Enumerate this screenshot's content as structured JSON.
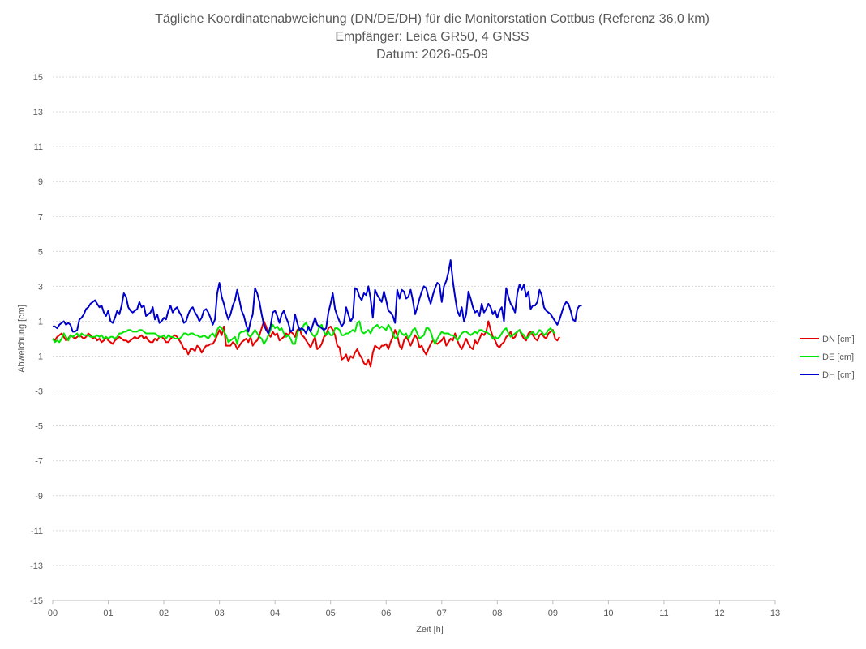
{
  "chart_data": {
    "type": "line",
    "title_lines": [
      "Tägliche Koordinatenabweichung (DN/DE/DH) für die Monitorstation Cottbus (Referenz 36,0 km)",
      "Empfänger: Leica GR50, 4 GNSS",
      "Datum: 2026-05-09"
    ],
    "xlabel": "Zeit [h]",
    "ylabel": "Abweichung [cm]",
    "xlim": [
      0,
      13
    ],
    "ylim": [
      -15,
      15
    ],
    "x_ticks": [
      "00",
      "01",
      "02",
      "03",
      "04",
      "05",
      "06",
      "07",
      "08",
      "09",
      "10",
      "11",
      "12",
      "13"
    ],
    "y_ticks": [
      "15",
      "13",
      "11",
      "9",
      "7",
      "5",
      "3",
      "1",
      "-1",
      "-3",
      "-5",
      "-7",
      "-9",
      "-11",
      "-13",
      "-15"
    ],
    "grid": "horizontal-dotted",
    "legend_position": "right",
    "x_step_h": 0.04,
    "series": [
      {
        "name": "DN [cm]",
        "color": "#e60000",
        "values": [
          0.0,
          -0.1,
          0.1,
          0.2,
          0.3,
          0.1,
          -0.1,
          0.0,
          0.2,
          0.1,
          0.0,
          0.1,
          0.2,
          0.1,
          0.0,
          0.1,
          0.3,
          0.2,
          0.0,
          0.1,
          -0.1,
          0.0,
          -0.2,
          -0.1,
          0.1,
          -0.1,
          -0.2,
          -0.3,
          -0.1,
          0.0,
          0.1,
          0.0,
          -0.1,
          -0.1,
          -0.2,
          -0.1,
          0.0,
          0.1,
          0.0,
          0.1,
          0.2,
          0.0,
          0.1,
          -0.1,
          -0.2,
          -0.2,
          0.0,
          -0.1,
          0.1,
          0.1,
          0.0,
          -0.2,
          -0.2,
          0.0,
          0.1,
          0.2,
          0.1,
          -0.1,
          -0.3,
          -0.6,
          -0.6,
          -0.9,
          -0.6,
          -0.6,
          -0.7,
          -0.4,
          -0.5,
          -0.8,
          -0.6,
          -0.4,
          -0.4,
          -0.3,
          -0.3,
          -0.1,
          0.2,
          0.5,
          0.2,
          0.7,
          -0.4,
          -0.4,
          -0.4,
          -0.2,
          -0.3,
          -0.6,
          -0.4,
          -0.2,
          -0.1,
          0.0,
          -0.2,
          0.1,
          -0.4,
          -0.2,
          -0.1,
          0.2,
          0.6,
          1.0,
          0.7,
          0.3,
          0.1,
          0.4,
          0.2,
          0.3,
          -0.1,
          0.0,
          0.1,
          0.3,
          0.2,
          0.4,
          0.3,
          0.1,
          0.5,
          0.6,
          0.2,
          0.1,
          -0.1,
          -0.3,
          -0.5,
          -0.2,
          0.1,
          -0.6,
          -0.5,
          -0.3,
          0.1,
          0.2,
          0.6,
          0.7,
          0.5,
          0.2,
          -0.4,
          -0.5,
          -1.2,
          -1.1,
          -0.9,
          -1.3,
          -1.0,
          -1.1,
          -0.8,
          -0.6,
          -0.9,
          -1.1,
          -1.4,
          -1.5,
          -1.2,
          -1.6,
          -0.8,
          -0.4,
          -0.5,
          -0.6,
          -0.4,
          -0.4,
          -0.3,
          -0.6,
          -0.2,
          0.1,
          0.5,
          0.2,
          -0.4,
          -0.6,
          -0.1,
          0.1,
          -0.1,
          -0.4,
          -0.1,
          0.2,
          0.0,
          -0.5,
          -0.4,
          -0.7,
          -0.9,
          -0.6,
          -0.3,
          -0.1,
          -0.2,
          -0.3,
          -0.2,
          -0.1,
          0.1,
          -0.4,
          -0.2,
          0.0,
          -0.1,
          0.3,
          -0.1,
          -0.4,
          -0.6,
          -0.3,
          0.0,
          -0.3,
          -0.5,
          -0.6,
          -0.1,
          -0.3,
          0.0,
          0.3,
          0.2,
          0.4,
          1.0,
          0.5,
          0.1,
          -0.1,
          -0.4,
          -0.5,
          -0.3,
          -0.2,
          0.1,
          0.2,
          0.4,
          0.0,
          0.1,
          0.4,
          0.5,
          0.2,
          0.0,
          -0.1,
          0.3,
          0.4,
          0.2,
          0.0,
          -0.1,
          0.2,
          0.3,
          0.1,
          0.0,
          0.3,
          0.4,
          0.5,
          0.0,
          -0.1,
          0.1
        ]
      },
      {
        "name": "DE [cm]",
        "color": "#00e600",
        "values": [
          0.0,
          -0.2,
          -0.1,
          -0.2,
          0.0,
          0.3,
          0.1,
          -0.1,
          0.2,
          0.1,
          0.2,
          0.3,
          0.1,
          0.3,
          0.2,
          0.2,
          0.2,
          0.1,
          0.1,
          0.1,
          0.2,
          0.1,
          0.2,
          0.0,
          0.1,
          0.0,
          0.1,
          0.1,
          0.0,
          0.1,
          0.3,
          0.3,
          0.4,
          0.4,
          0.5,
          0.5,
          0.4,
          0.4,
          0.4,
          0.5,
          0.5,
          0.4,
          0.3,
          0.3,
          0.3,
          0.3,
          0.3,
          0.2,
          0.1,
          0.1,
          0.2,
          0.0,
          0.2,
          0.1,
          0.1,
          0.0,
          0.0,
          0.0,
          0.1,
          0.3,
          0.3,
          0.2,
          0.3,
          0.3,
          0.2,
          0.2,
          0.1,
          0.1,
          0.2,
          0.1,
          0.0,
          0.2,
          0.3,
          0.1,
          0.5,
          0.7,
          0.6,
          0.4,
          0.2,
          -0.2,
          -0.1,
          0.0,
          0.1,
          -0.3,
          0.3,
          0.4,
          0.4,
          0.5,
          0.2,
          0.1,
          0.3,
          0.5,
          0.3,
          0.1,
          0.0,
          -0.3,
          -0.1,
          0.2,
          0.5,
          0.8,
          0.6,
          0.7,
          0.5,
          0.6,
          0.3,
          0.1,
          0.2,
          0.0,
          -0.3,
          -0.3,
          0.3,
          0.6,
          0.5,
          0.8,
          0.9,
          0.6,
          0.4,
          0.2,
          0.1,
          0.3,
          0.7,
          0.8,
          0.4,
          0.2,
          0.4,
          0.2,
          0.2,
          0.6,
          0.6,
          0.5,
          0.2,
          0.2,
          0.3,
          0.3,
          0.4,
          0.5,
          0.4,
          0.9,
          1.0,
          0.4,
          0.3,
          0.4,
          0.5,
          0.3,
          0.6,
          0.7,
          0.8,
          0.6,
          0.7,
          0.6,
          0.5,
          0.8,
          0.6,
          0.3,
          0.0,
          0.1,
          0.5,
          0.3,
          0.2,
          0.3,
          0.0,
          0.2,
          0.5,
          0.6,
          0.3,
          0.0,
          0.1,
          0.2,
          0.6,
          0.6,
          0.4,
          0.0,
          -0.3,
          0.0,
          0.2,
          0.4,
          0.3,
          0.3,
          0.3,
          0.2,
          0.2,
          0.1,
          -0.1,
          0.1,
          0.3,
          0.4,
          0.4,
          0.3,
          0.2,
          0.3,
          0.4,
          0.3,
          0.5,
          0.5,
          0.4,
          0.4,
          0.3,
          0.2,
          0.0,
          0.1,
          0.0,
          0.1,
          0.3,
          0.5,
          0.6,
          0.3,
          0.1,
          0.2,
          0.3,
          0.4,
          0.5,
          0.3,
          0.2,
          0.0,
          0.1,
          0.3,
          0.4,
          0.2,
          0.3,
          0.5,
          0.4,
          0.2,
          0.3,
          0.5,
          0.6,
          0.4,
          0.3
        ]
      },
      {
        "name": "DH [cm]",
        "color": "#0000cc",
        "values": [
          0.7,
          0.7,
          0.6,
          0.8,
          0.9,
          1.0,
          0.8,
          0.9,
          0.8,
          0.4,
          0.4,
          0.5,
          1.1,
          1.2,
          1.4,
          1.7,
          1.8,
          2.0,
          2.1,
          2.2,
          2.0,
          1.8,
          1.9,
          1.5,
          1.3,
          1.6,
          1.0,
          0.9,
          1.2,
          1.6,
          1.4,
          1.9,
          2.6,
          2.4,
          1.8,
          1.6,
          1.5,
          1.6,
          1.7,
          2.1,
          1.8,
          1.9,
          1.3,
          1.4,
          1.5,
          1.8,
          1.1,
          1.4,
          0.9,
          1.0,
          1.2,
          1.1,
          1.6,
          1.9,
          1.5,
          1.7,
          1.8,
          1.5,
          1.3,
          0.9,
          1.0,
          1.4,
          1.7,
          1.8,
          1.5,
          1.3,
          1.0,
          1.2,
          1.6,
          1.7,
          1.5,
          1.2,
          0.8,
          1.1,
          2.6,
          3.2,
          2.4,
          2.0,
          1.5,
          1.1,
          1.4,
          1.9,
          2.2,
          2.8,
          2.2,
          1.6,
          1.3,
          0.8,
          0.4,
          1.0,
          1.4,
          2.9,
          2.6,
          2.1,
          1.4,
          0.8,
          0.5,
          0.3,
          0.7,
          1.5,
          1.6,
          1.3,
          0.9,
          1.4,
          1.6,
          1.2,
          0.9,
          0.4,
          0.5,
          1.4,
          0.9,
          0.5,
          0.6,
          0.5,
          0.3,
          0.7,
          0.4,
          0.8,
          1.2,
          0.8,
          0.7,
          0.6,
          0.5,
          0.6,
          1.5,
          2.0,
          2.6,
          1.7,
          1.3,
          1.0,
          0.7,
          0.9,
          1.8,
          1.4,
          1.0,
          1.2,
          2.9,
          2.8,
          2.4,
          2.2,
          2.6,
          2.5,
          3.0,
          2.3,
          1.2,
          2.8,
          2.5,
          2.3,
          2.1,
          2.7,
          2.2,
          1.6,
          1.5,
          1.3,
          0.9,
          2.8,
          2.3,
          2.8,
          2.7,
          2.3,
          2.4,
          2.8,
          2.2,
          1.4,
          1.8,
          2.3,
          2.7,
          3.0,
          2.9,
          2.4,
          2.0,
          2.5,
          2.9,
          3.2,
          3.1,
          2.1,
          3.0,
          3.3,
          3.8,
          4.5,
          3.3,
          2.4,
          1.6,
          1.3,
          1.8,
          1.0,
          1.4,
          2.7,
          2.3,
          1.8,
          1.5,
          1.6,
          1.3,
          2.0,
          1.5,
          1.7,
          2.0,
          1.8,
          1.4,
          1.6,
          1.2,
          1.6,
          1.8,
          1.0,
          2.9,
          2.4,
          2.0,
          1.8,
          1.5,
          2.6,
          3.1,
          2.8,
          3.1,
          2.4,
          2.7,
          1.7,
          1.9,
          1.9,
          2.1,
          2.8,
          2.5,
          1.8,
          1.6,
          1.5,
          1.4,
          1.2,
          1.0,
          0.8,
          1.1,
          1.5,
          1.9,
          2.1,
          2.0,
          1.6,
          1.1,
          1.0,
          1.7,
          1.9,
          1.9
        ]
      }
    ]
  }
}
